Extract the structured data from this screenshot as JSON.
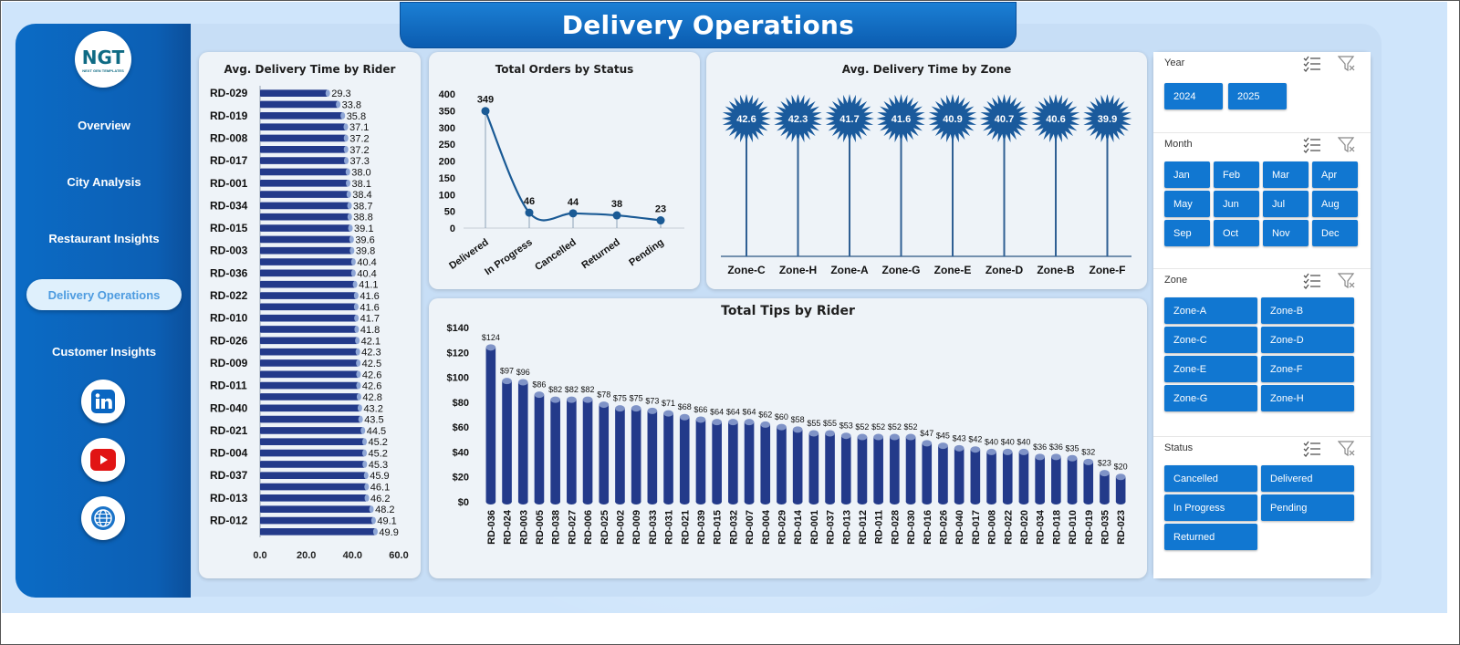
{
  "title": "Delivery Operations",
  "brand": {
    "logo_text": "NGT",
    "logo_sub": "NEXT GEN TEMPLATES"
  },
  "nav": [
    {
      "label": "Overview"
    },
    {
      "label": "City Analysis"
    },
    {
      "label": "Restaurant Insights"
    },
    {
      "label": "Delivery Operations",
      "active": true
    },
    {
      "label": "Customer Insights"
    }
  ],
  "social": [
    {
      "name": "linkedin-icon",
      "color": "#0a66c2"
    },
    {
      "name": "youtube-icon",
      "color": "#e11414"
    },
    {
      "name": "website-globe-icon",
      "color": "#1a73c8"
    }
  ],
  "colors": {
    "accent": "#1177d1",
    "bar": "#233a8a",
    "line": "#1a5a95"
  },
  "chart_data": [
    {
      "id": "rider_time",
      "type": "bar",
      "orientation": "horizontal",
      "title": "Avg. Delivery Time by Rider",
      "ylabels": [
        "RD-029",
        "RD-019",
        "RD-008",
        "RD-017",
        "RD-001",
        "RD-034",
        "RD-015",
        "RD-003",
        "RD-036",
        "RD-022",
        "RD-010",
        "RD-026",
        "RD-009",
        "RD-011",
        "RD-040",
        "RD-021",
        "RD-004",
        "RD-037",
        "RD-013",
        "RD-012"
      ],
      "values": [
        29.3,
        33.8,
        35.8,
        37.1,
        37.2,
        37.2,
        37.3,
        38.0,
        38.1,
        38.4,
        38.7,
        38.8,
        39.1,
        39.6,
        39.8,
        40.4,
        40.4,
        41.1,
        41.6,
        41.6,
        41.7,
        41.8,
        42.1,
        42.3,
        42.5,
        42.6,
        42.6,
        42.8,
        43.2,
        43.5,
        44.5,
        45.2,
        45.2,
        45.3,
        45.9,
        46.1,
        46.2,
        48.2,
        49.1,
        49.9
      ],
      "xlim": [
        0,
        60
      ],
      "xticks": [
        "0.0",
        "20.0",
        "40.0",
        "60.0"
      ]
    },
    {
      "id": "orders_status",
      "type": "line",
      "title": "Total Orders by Status",
      "categories": [
        "Delivered",
        "In Progress",
        "Cancelled",
        "Returned",
        "Pending"
      ],
      "values": [
        349,
        46,
        44,
        38,
        23
      ],
      "ylim": [
        0,
        400
      ],
      "yticks": [
        "0",
        "50",
        "100",
        "150",
        "200",
        "250",
        "300",
        "350",
        "400"
      ]
    },
    {
      "id": "zone_time",
      "type": "bar",
      "title": "Avg. Delivery Time by Zone",
      "categories": [
        "Zone-C",
        "Zone-H",
        "Zone-A",
        "Zone-G",
        "Zone-E",
        "Zone-D",
        "Zone-B",
        "Zone-F"
      ],
      "values": [
        42.6,
        42.3,
        41.7,
        41.6,
        40.9,
        40.7,
        40.6,
        39.9
      ]
    },
    {
      "id": "tips_rider",
      "type": "bar",
      "title": "Total Tips by Rider",
      "categories": [
        "RD-036",
        "RD-024",
        "RD-003",
        "RD-005",
        "RD-038",
        "RD-027",
        "RD-006",
        "RD-025",
        "RD-002",
        "RD-009",
        "RD-033",
        "RD-031",
        "RD-021",
        "RD-039",
        "RD-015",
        "RD-032",
        "RD-007",
        "RD-004",
        "RD-029",
        "RD-014",
        "RD-001",
        "RD-037",
        "RD-013",
        "RD-012",
        "RD-011",
        "RD-028",
        "RD-030",
        "RD-016",
        "RD-026",
        "RD-040",
        "RD-017",
        "RD-008",
        "RD-022",
        "RD-020",
        "RD-034",
        "RD-018",
        "RD-010",
        "RD-019",
        "RD-035",
        "RD-023"
      ],
      "values": [
        124,
        97,
        96,
        86,
        82,
        82,
        82,
        78,
        75,
        75,
        73,
        71,
        68,
        66,
        64,
        64,
        64,
        62,
        60,
        58,
        55,
        55,
        53,
        52,
        52,
        52,
        52,
        47,
        45,
        43,
        42,
        40,
        40,
        40,
        36,
        36,
        35,
        32,
        23,
        20
      ],
      "labels": [
        "$124",
        "$97",
        "$96",
        "$86",
        "$82",
        "$82",
        "$82",
        "$78",
        "$75",
        "$75",
        "$73",
        "$71",
        "$68",
        "$66",
        "$64",
        "$64",
        "$64",
        "$62",
        "$60",
        "$58",
        "$55",
        "$55",
        "$53",
        "$52",
        "$52",
        "$52",
        "$52",
        "$47",
        "$45",
        "$43",
        "$42",
        "$40",
        "$40",
        "$40",
        "$36",
        "$36",
        "$35",
        "$32",
        "$23",
        "$20"
      ],
      "ylim": [
        0,
        140
      ],
      "yticks": [
        "$0",
        "$20",
        "$40",
        "$60",
        "$80",
        "$100",
        "$120",
        "$140"
      ]
    }
  ],
  "slicers": [
    {
      "title": "Year",
      "items": [
        "2024",
        "2025"
      ]
    },
    {
      "title": "Month",
      "items": [
        "Jan",
        "Feb",
        "Mar",
        "Apr",
        "May",
        "Jun",
        "Jul",
        "Aug",
        "Sep",
        "Oct",
        "Nov",
        "Dec"
      ]
    },
    {
      "title": "Zone",
      "items": [
        "Zone-A",
        "Zone-B",
        "Zone-C",
        "Zone-D",
        "Zone-E",
        "Zone-F",
        "Zone-G",
        "Zone-H"
      ]
    },
    {
      "title": "Status",
      "items": [
        "Cancelled",
        "Delivered",
        "In Progress",
        "Pending",
        "Returned"
      ]
    }
  ]
}
